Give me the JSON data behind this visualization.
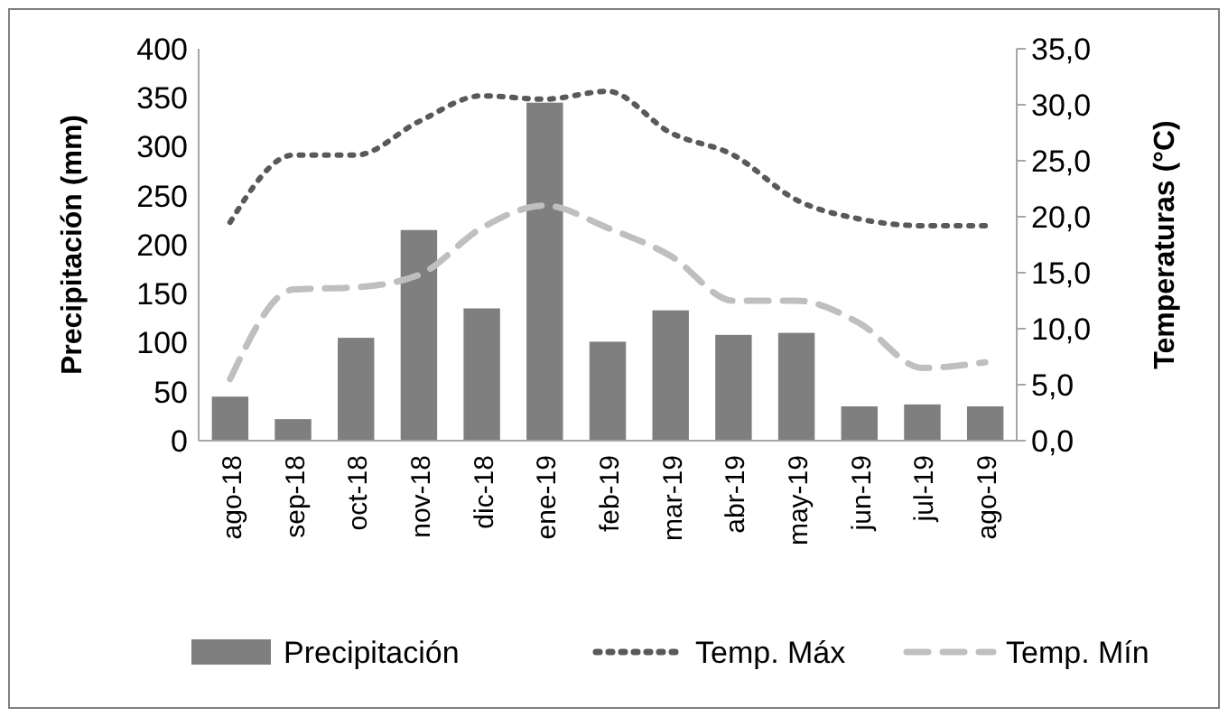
{
  "chart_data": {
    "type": "bar",
    "categories": [
      "ago-18",
      "sep-18",
      "oct-18",
      "nov-18",
      "dic-18",
      "ene-19",
      "feb-19",
      "mar-19",
      "abr-19",
      "may-19",
      "jun-19",
      "jul-19",
      "ago-19"
    ],
    "ylabel": "Precipitación (mm)",
    "y2label": "Temperaturas (°C)",
    "ylim": [
      0,
      400
    ],
    "yticks": [
      0,
      50,
      100,
      150,
      200,
      250,
      300,
      350,
      400
    ],
    "y2lim": [
      0,
      35
    ],
    "y2ticks": [
      {
        "value": 0,
        "label": "0,0"
      },
      {
        "value": 5,
        "label": "5,0"
      },
      {
        "value": 10,
        "label": "10,0"
      },
      {
        "value": 15,
        "label": "15,0"
      },
      {
        "value": 20,
        "label": "20,0"
      },
      {
        "value": 25,
        "label": "25,0"
      },
      {
        "value": 30,
        "label": "30,0"
      },
      {
        "value": 35,
        "label": "35,0"
      }
    ],
    "legend": "bottom",
    "grid": false,
    "series": [
      {
        "name": "Precipitación",
        "color": "#7f7f7f",
        "values": [
          45,
          22,
          105,
          215,
          135,
          345,
          101,
          133,
          108,
          110,
          35,
          37,
          35
        ]
      },
      {
        "name": "Temp. Máx",
        "type": "line",
        "axis": "y2",
        "color": "#595959",
        "line_style": "dotted",
        "values": [
          19.5,
          25.5,
          25.5,
          28.5,
          30.8,
          30.5,
          31.2,
          27.5,
          25.5,
          21.5,
          19.8,
          19.2,
          19.2
        ]
      },
      {
        "name": "Temp. Mín",
        "type": "line",
        "axis": "y2",
        "color": "#bfbfbf",
        "line_style": "dashed",
        "values": [
          5.5,
          13.5,
          13.7,
          14.8,
          19,
          21,
          19,
          16.5,
          12.5,
          12.5,
          10.5,
          6.5,
          7
        ]
      }
    ]
  }
}
